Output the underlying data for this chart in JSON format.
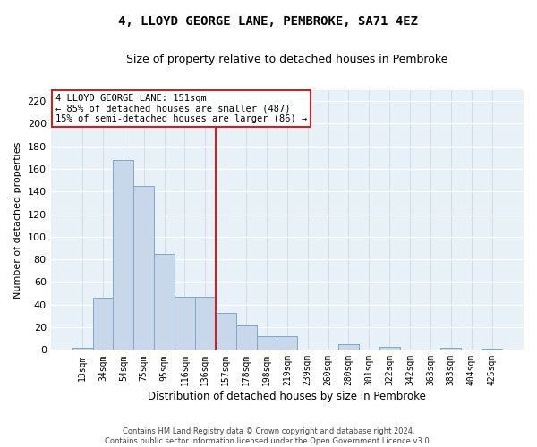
{
  "title": "4, LLOYD GEORGE LANE, PEMBROKE, SA71 4EZ",
  "subtitle": "Size of property relative to detached houses in Pembroke",
  "xlabel": "Distribution of detached houses by size in Pembroke",
  "ylabel": "Number of detached properties",
  "bar_color": "#c8d8ea",
  "bar_edge_color": "#7aaac8",
  "background_color": "#e8f0f8",
  "grid_color": "#d0dce8",
  "vline_color": "#cc2222",
  "vline_index": 7,
  "categories": [
    "13sqm",
    "34sqm",
    "54sqm",
    "75sqm",
    "95sqm",
    "116sqm",
    "136sqm",
    "157sqm",
    "178sqm",
    "198sqm",
    "219sqm",
    "239sqm",
    "260sqm",
    "280sqm",
    "301sqm",
    "322sqm",
    "342sqm",
    "363sqm",
    "383sqm",
    "404sqm",
    "425sqm"
  ],
  "values": [
    2,
    46,
    168,
    145,
    85,
    47,
    47,
    33,
    22,
    12,
    12,
    0,
    0,
    5,
    0,
    3,
    0,
    0,
    2,
    0,
    1
  ],
  "annotation_text": "4 LLOYD GEORGE LANE: 151sqm\n← 85% of detached houses are smaller (487)\n15% of semi-detached houses are larger (86) →",
  "footer_text": "Contains HM Land Registry data © Crown copyright and database right 2024.\nContains public sector information licensed under the Open Government Licence v3.0.",
  "ylim": [
    0,
    230
  ],
  "yticks": [
    0,
    20,
    40,
    60,
    80,
    100,
    120,
    140,
    160,
    180,
    200,
    220
  ]
}
